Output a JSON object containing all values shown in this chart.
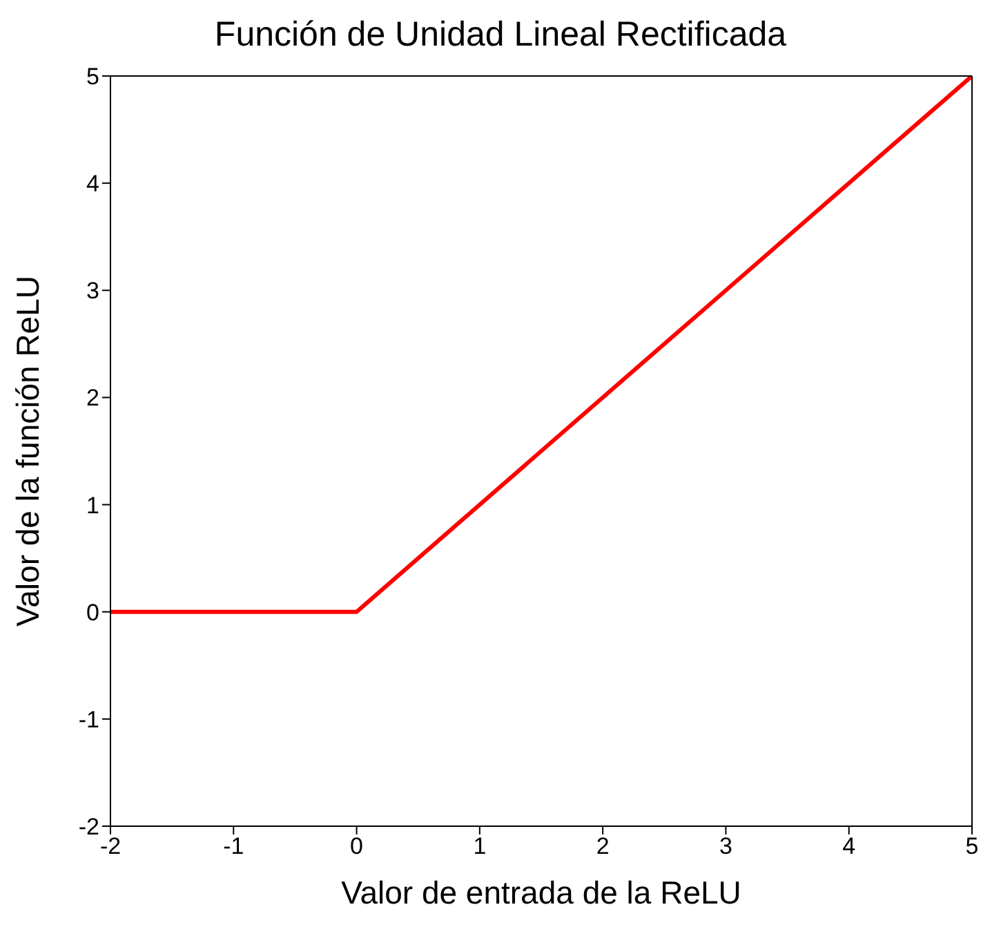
{
  "chart_data": {
    "type": "line",
    "title": "Función de Unidad Lineal Rectificada",
    "xlabel": "Valor de entrada de la ReLU",
    "ylabel": "Valor de la función ReLU",
    "x": [
      -2,
      0,
      5
    ],
    "series": [
      {
        "color": "#ff0000",
        "values": [
          0,
          0,
          5
        ]
      }
    ],
    "xlim": [
      -2,
      5
    ],
    "xticks": [
      -2,
      -1,
      0,
      1,
      2,
      3,
      4,
      5
    ],
    "ylim": [
      -2,
      5
    ],
    "yticks": [
      -2,
      -1,
      0,
      1,
      2,
      3,
      4,
      5
    ],
    "grid": false,
    "legend": false,
    "marker": "none",
    "line_style": "solid"
  }
}
